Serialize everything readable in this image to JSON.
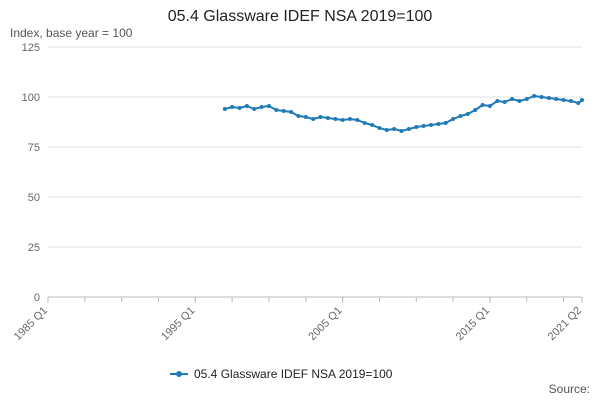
{
  "chart_data": {
    "type": "line",
    "title": "05.4 Glassware IDEF NSA 2019=100",
    "ylabel": "Index, base year = 100",
    "xlabel": "",
    "source_label": "Source:",
    "x_range": [
      "1985 Q1",
      "2021 Q2"
    ],
    "ylim": [
      0,
      125
    ],
    "yticks": [
      0,
      25,
      50,
      75,
      100,
      125
    ],
    "xticks": [
      "1985 Q1",
      "1995 Q1",
      "2005 Q1",
      "2015 Q1",
      "2021 Q2"
    ],
    "grid": true,
    "legend_position": "bottom-center",
    "series": [
      {
        "name": "05.4 Glassware IDEF NSA 2019=100",
        "color": "#1f7ab8",
        "marker": "circle",
        "points": [
          [
            "1997 Q1",
            94.0
          ],
          [
            "1997 Q3",
            95.0
          ],
          [
            "1998 Q1",
            94.5
          ],
          [
            "1998 Q3",
            95.5
          ],
          [
            "1999 Q1",
            94.0
          ],
          [
            "1999 Q3",
            95.0
          ],
          [
            "2000 Q1",
            95.5
          ],
          [
            "2000 Q3",
            93.5
          ],
          [
            "2001 Q1",
            93.0
          ],
          [
            "2001 Q3",
            92.5
          ],
          [
            "2002 Q1",
            90.5
          ],
          [
            "2002 Q3",
            90.0
          ],
          [
            "2003 Q1",
            89.0
          ],
          [
            "2003 Q3",
            90.0
          ],
          [
            "2004 Q1",
            89.5
          ],
          [
            "2004 Q3",
            89.0
          ],
          [
            "2005 Q1",
            88.5
          ],
          [
            "2005 Q3",
            89.0
          ],
          [
            "2006 Q1",
            88.5
          ],
          [
            "2006 Q3",
            87.0
          ],
          [
            "2007 Q1",
            86.0
          ],
          [
            "2007 Q3",
            84.5
          ],
          [
            "2008 Q1",
            83.5
          ],
          [
            "2008 Q3",
            84.0
          ],
          [
            "2009 Q1",
            83.0
          ],
          [
            "2009 Q3",
            84.0
          ],
          [
            "2010 Q1",
            85.0
          ],
          [
            "2010 Q3",
            85.5
          ],
          [
            "2011 Q1",
            86.0
          ],
          [
            "2011 Q3",
            86.5
          ],
          [
            "2012 Q1",
            87.0
          ],
          [
            "2012 Q3",
            89.0
          ],
          [
            "2013 Q1",
            90.5
          ],
          [
            "2013 Q3",
            91.5
          ],
          [
            "2014 Q1",
            93.5
          ],
          [
            "2014 Q3",
            96.0
          ],
          [
            "2015 Q1",
            95.5
          ],
          [
            "2015 Q3",
            98.0
          ],
          [
            "2016 Q1",
            97.5
          ],
          [
            "2016 Q3",
            99.0
          ],
          [
            "2017 Q1",
            98.0
          ],
          [
            "2017 Q3",
            99.0
          ],
          [
            "2018 Q1",
            100.5
          ],
          [
            "2018 Q3",
            100.0
          ],
          [
            "2019 Q1",
            99.5
          ],
          [
            "2019 Q3",
            99.0
          ],
          [
            "2020 Q1",
            98.5
          ],
          [
            "2020 Q3",
            98.0
          ],
          [
            "2021 Q1",
            97.0
          ],
          [
            "2021 Q2",
            98.5
          ]
        ]
      }
    ]
  }
}
